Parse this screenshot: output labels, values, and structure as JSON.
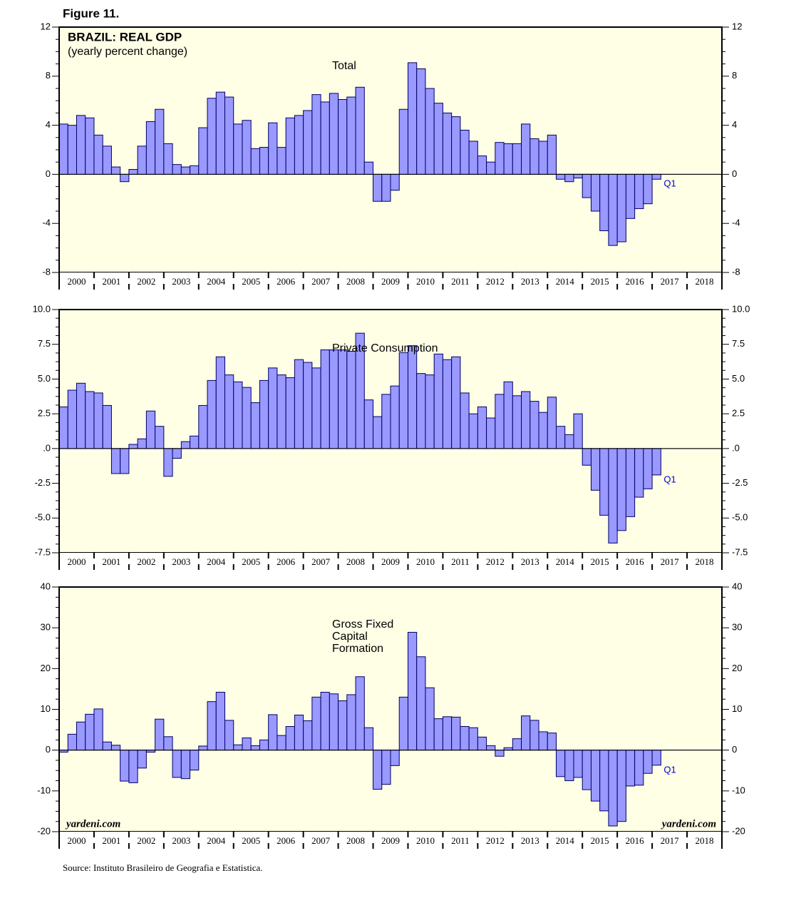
{
  "figure_label": "Figure 11.",
  "source": "Source: Instituto Brasileiro de Geografia e Estatistica.",
  "chart_data": [
    {
      "type": "bar",
      "title": "BRAZIL: REAL GDP",
      "subtitle": "(yearly percent change)",
      "xlim": [
        2000,
        2019
      ],
      "xticks": [
        2000,
        2001,
        2002,
        2003,
        2004,
        2005,
        2006,
        2007,
        2008,
        2009,
        2010,
        2011,
        2012,
        2013,
        2014,
        2015,
        2016,
        2017,
        2018
      ],
      "ylim": [
        -8,
        12
      ],
      "yticks": [
        -8,
        -4,
        0,
        4,
        8,
        12
      ],
      "series": [
        {
          "name": "Total",
          "color": "#9999ff",
          "values": [
            4.1,
            4.0,
            4.8,
            4.6,
            3.2,
            2.3,
            0.6,
            -0.6,
            0.4,
            2.3,
            4.3,
            5.3,
            2.5,
            0.8,
            0.6,
            0.7,
            3.8,
            6.2,
            6.7,
            6.3,
            4.1,
            4.4,
            2.1,
            2.2,
            4.2,
            2.2,
            4.6,
            4.8,
            5.2,
            6.5,
            5.9,
            6.6,
            6.1,
            6.3,
            7.1,
            1.0,
            -2.2,
            -2.2,
            -1.3,
            5.3,
            9.1,
            8.6,
            7.0,
            5.8,
            5.0,
            4.7,
            3.6,
            2.7,
            1.5,
            1.0,
            2.6,
            2.5,
            2.5,
            4.1,
            2.9,
            2.7,
            3.2,
            -0.4,
            -0.6,
            -0.3,
            -1.9,
            -3.0,
            -4.6,
            -5.8,
            -5.5,
            -3.6,
            -2.8,
            -2.4,
            -0.4
          ]
        }
      ],
      "annotations": [
        "Q1"
      ]
    },
    {
      "type": "bar",
      "xlim": [
        2000,
        2019
      ],
      "xticks": [
        2000,
        2001,
        2002,
        2003,
        2004,
        2005,
        2006,
        2007,
        2008,
        2009,
        2010,
        2011,
        2012,
        2013,
        2014,
        2015,
        2016,
        2017,
        2018
      ],
      "ylim": [
        -7.5,
        10
      ],
      "yticks": [
        {
          "value": -7.5,
          "label": "-7.5"
        },
        {
          "value": -5,
          "label": "-5.0"
        },
        {
          "value": -2.5,
          "label": "-2.5"
        },
        {
          "value": 0,
          "label": ".0"
        },
        {
          "value": 2.5,
          "label": "2.5"
        },
        {
          "value": 5,
          "label": "5.0"
        },
        {
          "value": 7.5,
          "label": "7.5"
        },
        {
          "value": 10,
          "label": "10.0"
        }
      ],
      "series": [
        {
          "name": "Private Consumption",
          "color": "#9999ff",
          "values": [
            3.0,
            4.2,
            4.7,
            4.1,
            4.0,
            3.1,
            -1.8,
            -1.8,
            0.3,
            0.7,
            2.7,
            1.6,
            -2.0,
            -0.7,
            0.5,
            0.9,
            3.1,
            4.9,
            6.6,
            5.3,
            4.8,
            4.4,
            3.3,
            4.9,
            5.8,
            5.3,
            5.1,
            6.4,
            6.2,
            5.8,
            7.1,
            7.1,
            7.1,
            7.0,
            8.3,
            3.5,
            2.3,
            3.9,
            4.5,
            6.9,
            7.4,
            5.4,
            5.3,
            6.8,
            6.4,
            6.6,
            4.0,
            2.5,
            3.0,
            2.2,
            3.9,
            4.8,
            3.8,
            4.1,
            3.4,
            2.6,
            3.7,
            1.6,
            1.0,
            2.5,
            -1.2,
            -3.0,
            -4.8,
            -6.8,
            -5.9,
            -4.9,
            -3.5,
            -2.9,
            -1.9
          ]
        }
      ],
      "annotations": [
        "Q1"
      ]
    },
    {
      "type": "bar",
      "xlim": [
        2000,
        2019
      ],
      "xticks": [
        2000,
        2001,
        2002,
        2003,
        2004,
        2005,
        2006,
        2007,
        2008,
        2009,
        2010,
        2011,
        2012,
        2013,
        2014,
        2015,
        2016,
        2017,
        2018
      ],
      "ylim": [
        -20,
        40
      ],
      "yticks": [
        -20,
        -10,
        0,
        10,
        20,
        30,
        40
      ],
      "series": [
        {
          "name": "Gross Fixed\nCapital\nFormation",
          "color": "#9999ff",
          "values": [
            -0.5,
            3.9,
            6.9,
            8.8,
            10.1,
            2.0,
            1.2,
            -7.6,
            -8.0,
            -4.4,
            -0.5,
            7.6,
            3.3,
            -6.7,
            -7.0,
            -4.9,
            1.0,
            11.9,
            14.2,
            7.3,
            1.3,
            3.0,
            1.1,
            2.5,
            8.7,
            3.6,
            5.8,
            8.6,
            7.2,
            13.0,
            14.2,
            13.8,
            12.1,
            13.6,
            18.0,
            5.5,
            -9.6,
            -8.4,
            -3.8,
            13.0,
            28.9,
            22.9,
            15.3,
            7.7,
            8.2,
            8.1,
            5.8,
            5.5,
            3.2,
            1.1,
            -1.5,
            0.6,
            2.8,
            8.4,
            7.3,
            4.5,
            4.2,
            -6.5,
            -7.5,
            -6.7,
            -9.7,
            -12.5,
            -14.9,
            -18.6,
            -17.5,
            -8.8,
            -8.6,
            -5.7,
            -3.7
          ]
        }
      ],
      "annotations": [
        "Q1",
        "yardeni.com",
        "yardeni.com"
      ]
    }
  ]
}
